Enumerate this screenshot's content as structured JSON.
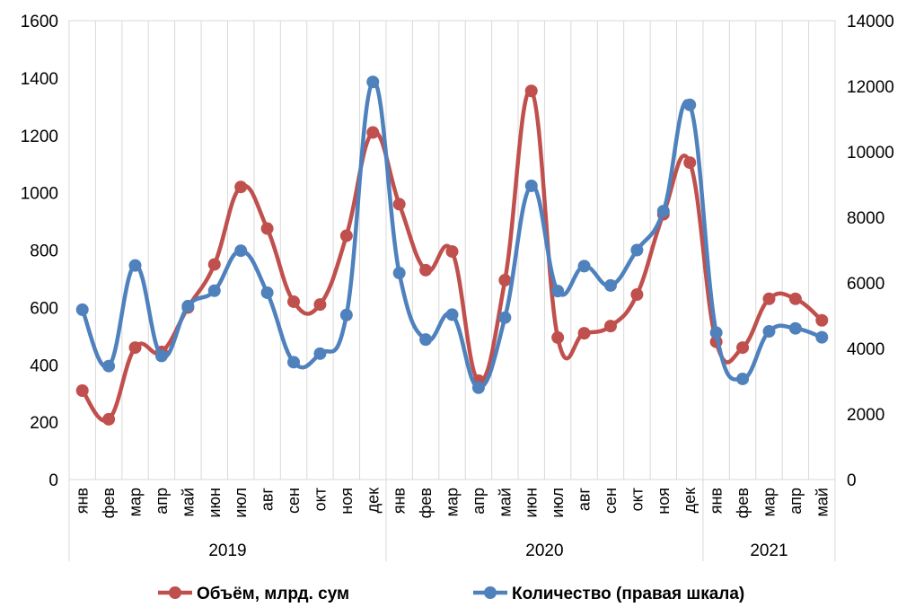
{
  "chart_data": {
    "type": "line",
    "categories": [
      "янв",
      "фев",
      "мар",
      "апр",
      "май",
      "июн",
      "июл",
      "авг",
      "сен",
      "окт",
      "ноя",
      "дек",
      "янв",
      "фев",
      "мар",
      "апр",
      "май",
      "июн",
      "июл",
      "авг",
      "сен",
      "окт",
      "ноя",
      "дек",
      "янв",
      "фев",
      "мар",
      "апр",
      "май"
    ],
    "groups": [
      {
        "label": "2019",
        "count": 12
      },
      {
        "label": "2020",
        "count": 12
      },
      {
        "label": "2021",
        "count": 5
      }
    ],
    "y_left": {
      "min": 0,
      "max": 1600,
      "ticks": [
        0,
        200,
        400,
        600,
        800,
        1000,
        1200,
        1400,
        1600
      ]
    },
    "y_right": {
      "min": 0,
      "max": 14000,
      "ticks": [
        0,
        2000,
        4000,
        6000,
        8000,
        10000,
        12000,
        14000
      ]
    },
    "grid": "vertical",
    "legend_position": "bottom",
    "series": [
      {
        "name": "Объём, млрд. сум",
        "axis": "left",
        "color": "#c0504d",
        "values": [
          310,
          210,
          460,
          445,
          600,
          750,
          1020,
          875,
          620,
          610,
          850,
          1210,
          960,
          730,
          795,
          345,
          695,
          1355,
          495,
          510,
          535,
          645,
          925,
          1105,
          480,
          460,
          630,
          630,
          555
        ]
      },
      {
        "name": "Количество (правая шкала)",
        "axis": "right",
        "color": "#4f81bd",
        "values": [
          5180,
          3460,
          6530,
          3770,
          5290,
          5760,
          6980,
          5700,
          3580,
          3840,
          5020,
          12130,
          6300,
          4270,
          5030,
          2800,
          4940,
          8960,
          5750,
          6510,
          5920,
          7000,
          8190,
          11430,
          4480,
          3070,
          4520,
          4610,
          4340
        ]
      }
    ]
  }
}
